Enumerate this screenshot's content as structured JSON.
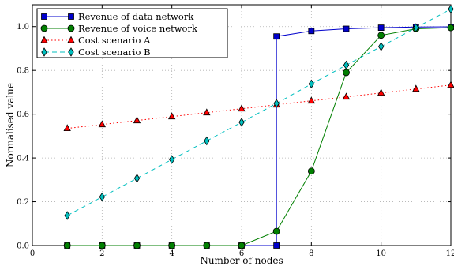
{
  "chart_data": {
    "type": "line",
    "title": "",
    "xlabel": "Number of nodes",
    "ylabel": "Normalised value",
    "xlim": [
      0,
      12
    ],
    "ylim": [
      0,
      1.1
    ],
    "x_ticks": [
      "0",
      "2",
      "4",
      "6",
      "8",
      "10",
      "12"
    ],
    "y_ticks": [
      "0.0",
      "0.2",
      "0.4",
      "0.6",
      "0.8",
      "1.0"
    ],
    "grid": true,
    "legend_position": "top-left",
    "series": [
      {
        "name": "Revenue of data network",
        "color": "#0000cc",
        "line": "solid",
        "marker": "square",
        "points": [
          [
            1,
            0
          ],
          [
            2,
            0
          ],
          [
            3,
            0
          ],
          [
            4,
            0
          ],
          [
            5,
            0
          ],
          [
            6,
            0
          ],
          [
            7,
            0
          ],
          [
            7,
            0.955
          ],
          [
            8,
            0.98
          ],
          [
            9,
            0.99
          ],
          [
            10,
            0.995
          ],
          [
            11,
            0.998
          ],
          [
            12,
            0.999
          ]
        ]
      },
      {
        "name": "Revenue of voice network",
        "color": "#007f00",
        "line": "solid",
        "marker": "circle",
        "points": [
          [
            1,
            0
          ],
          [
            2,
            0
          ],
          [
            3,
            0
          ],
          [
            4,
            0
          ],
          [
            5,
            0
          ],
          [
            6,
            0
          ],
          [
            7,
            0.065
          ],
          [
            8,
            0.34
          ],
          [
            9,
            0.79
          ],
          [
            10,
            0.96
          ],
          [
            11,
            0.99
          ],
          [
            12,
            0.995
          ]
        ]
      },
      {
        "name": "Cost scenario A",
        "color": "#ff0000",
        "line": "dotted",
        "marker": "triangle",
        "points": [
          [
            1,
            0.535
          ],
          [
            2,
            0.553
          ],
          [
            3,
            0.571
          ],
          [
            4,
            0.589
          ],
          [
            5,
            0.607
          ],
          [
            6,
            0.625
          ],
          [
            7,
            0.643
          ],
          [
            8,
            0.661
          ],
          [
            9,
            0.679
          ],
          [
            10,
            0.697
          ],
          [
            11,
            0.715
          ],
          [
            12,
            0.733
          ]
        ]
      },
      {
        "name": "Cost scenario B",
        "color": "#00bfbf",
        "line": "dashed",
        "marker": "diamond",
        "points": [
          [
            1,
            0.137
          ],
          [
            2,
            0.222
          ],
          [
            3,
            0.307
          ],
          [
            4,
            0.393
          ],
          [
            5,
            0.478
          ],
          [
            6,
            0.563
          ],
          [
            7,
            0.649
          ],
          [
            8,
            0.738
          ],
          [
            9,
            0.824
          ],
          [
            10,
            0.909
          ],
          [
            11,
            0.995
          ],
          [
            12,
            1.08
          ]
        ]
      }
    ]
  }
}
